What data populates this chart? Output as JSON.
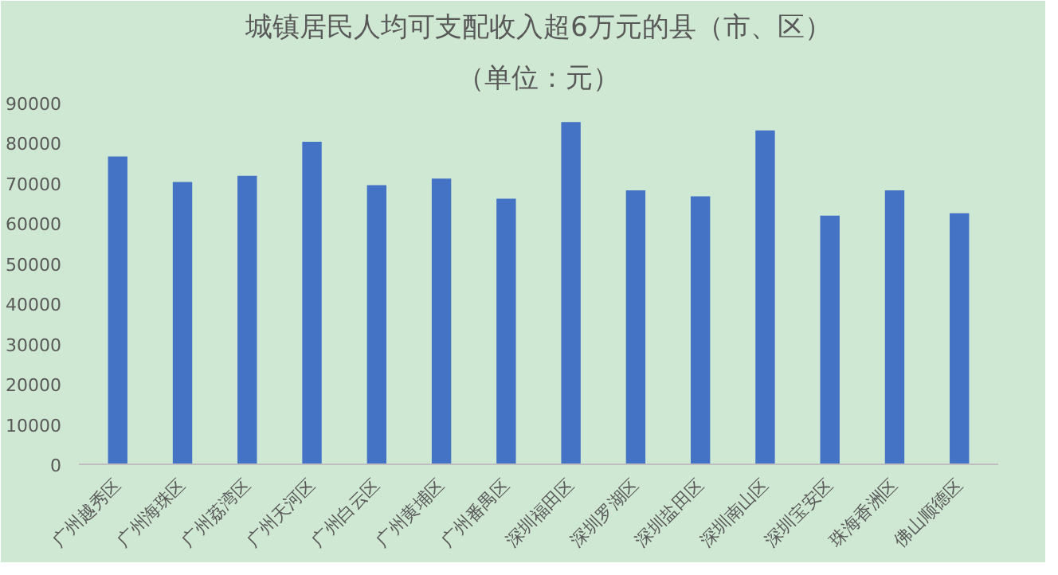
{
  "chart_data": {
    "type": "bar",
    "title": "城镇居民人均可支配收入超6万元的县（市、区）",
    "subtitle": "（单位：元）",
    "categories": [
      "广州越秀区",
      "广州海珠区",
      "广州荔湾区",
      "广州天河区",
      "广州白云区",
      "广州黄埔区",
      "广州番禺区",
      "深圳福田区",
      "深圳罗湖区",
      "深圳盐田区",
      "深圳南山区",
      "深圳宝安区",
      "珠海香洲区",
      "佛山顺德区"
    ],
    "values": [
      76600,
      70300,
      71800,
      80300,
      69500,
      71100,
      66100,
      85200,
      68200,
      66700,
      83100,
      61900,
      68200,
      62500
    ],
    "color": "#4472c4",
    "ylim": [
      0,
      90000
    ],
    "yticks": [
      0,
      10000,
      20000,
      30000,
      40000,
      50000,
      60000,
      70000,
      80000,
      90000
    ],
    "grid": false
  }
}
